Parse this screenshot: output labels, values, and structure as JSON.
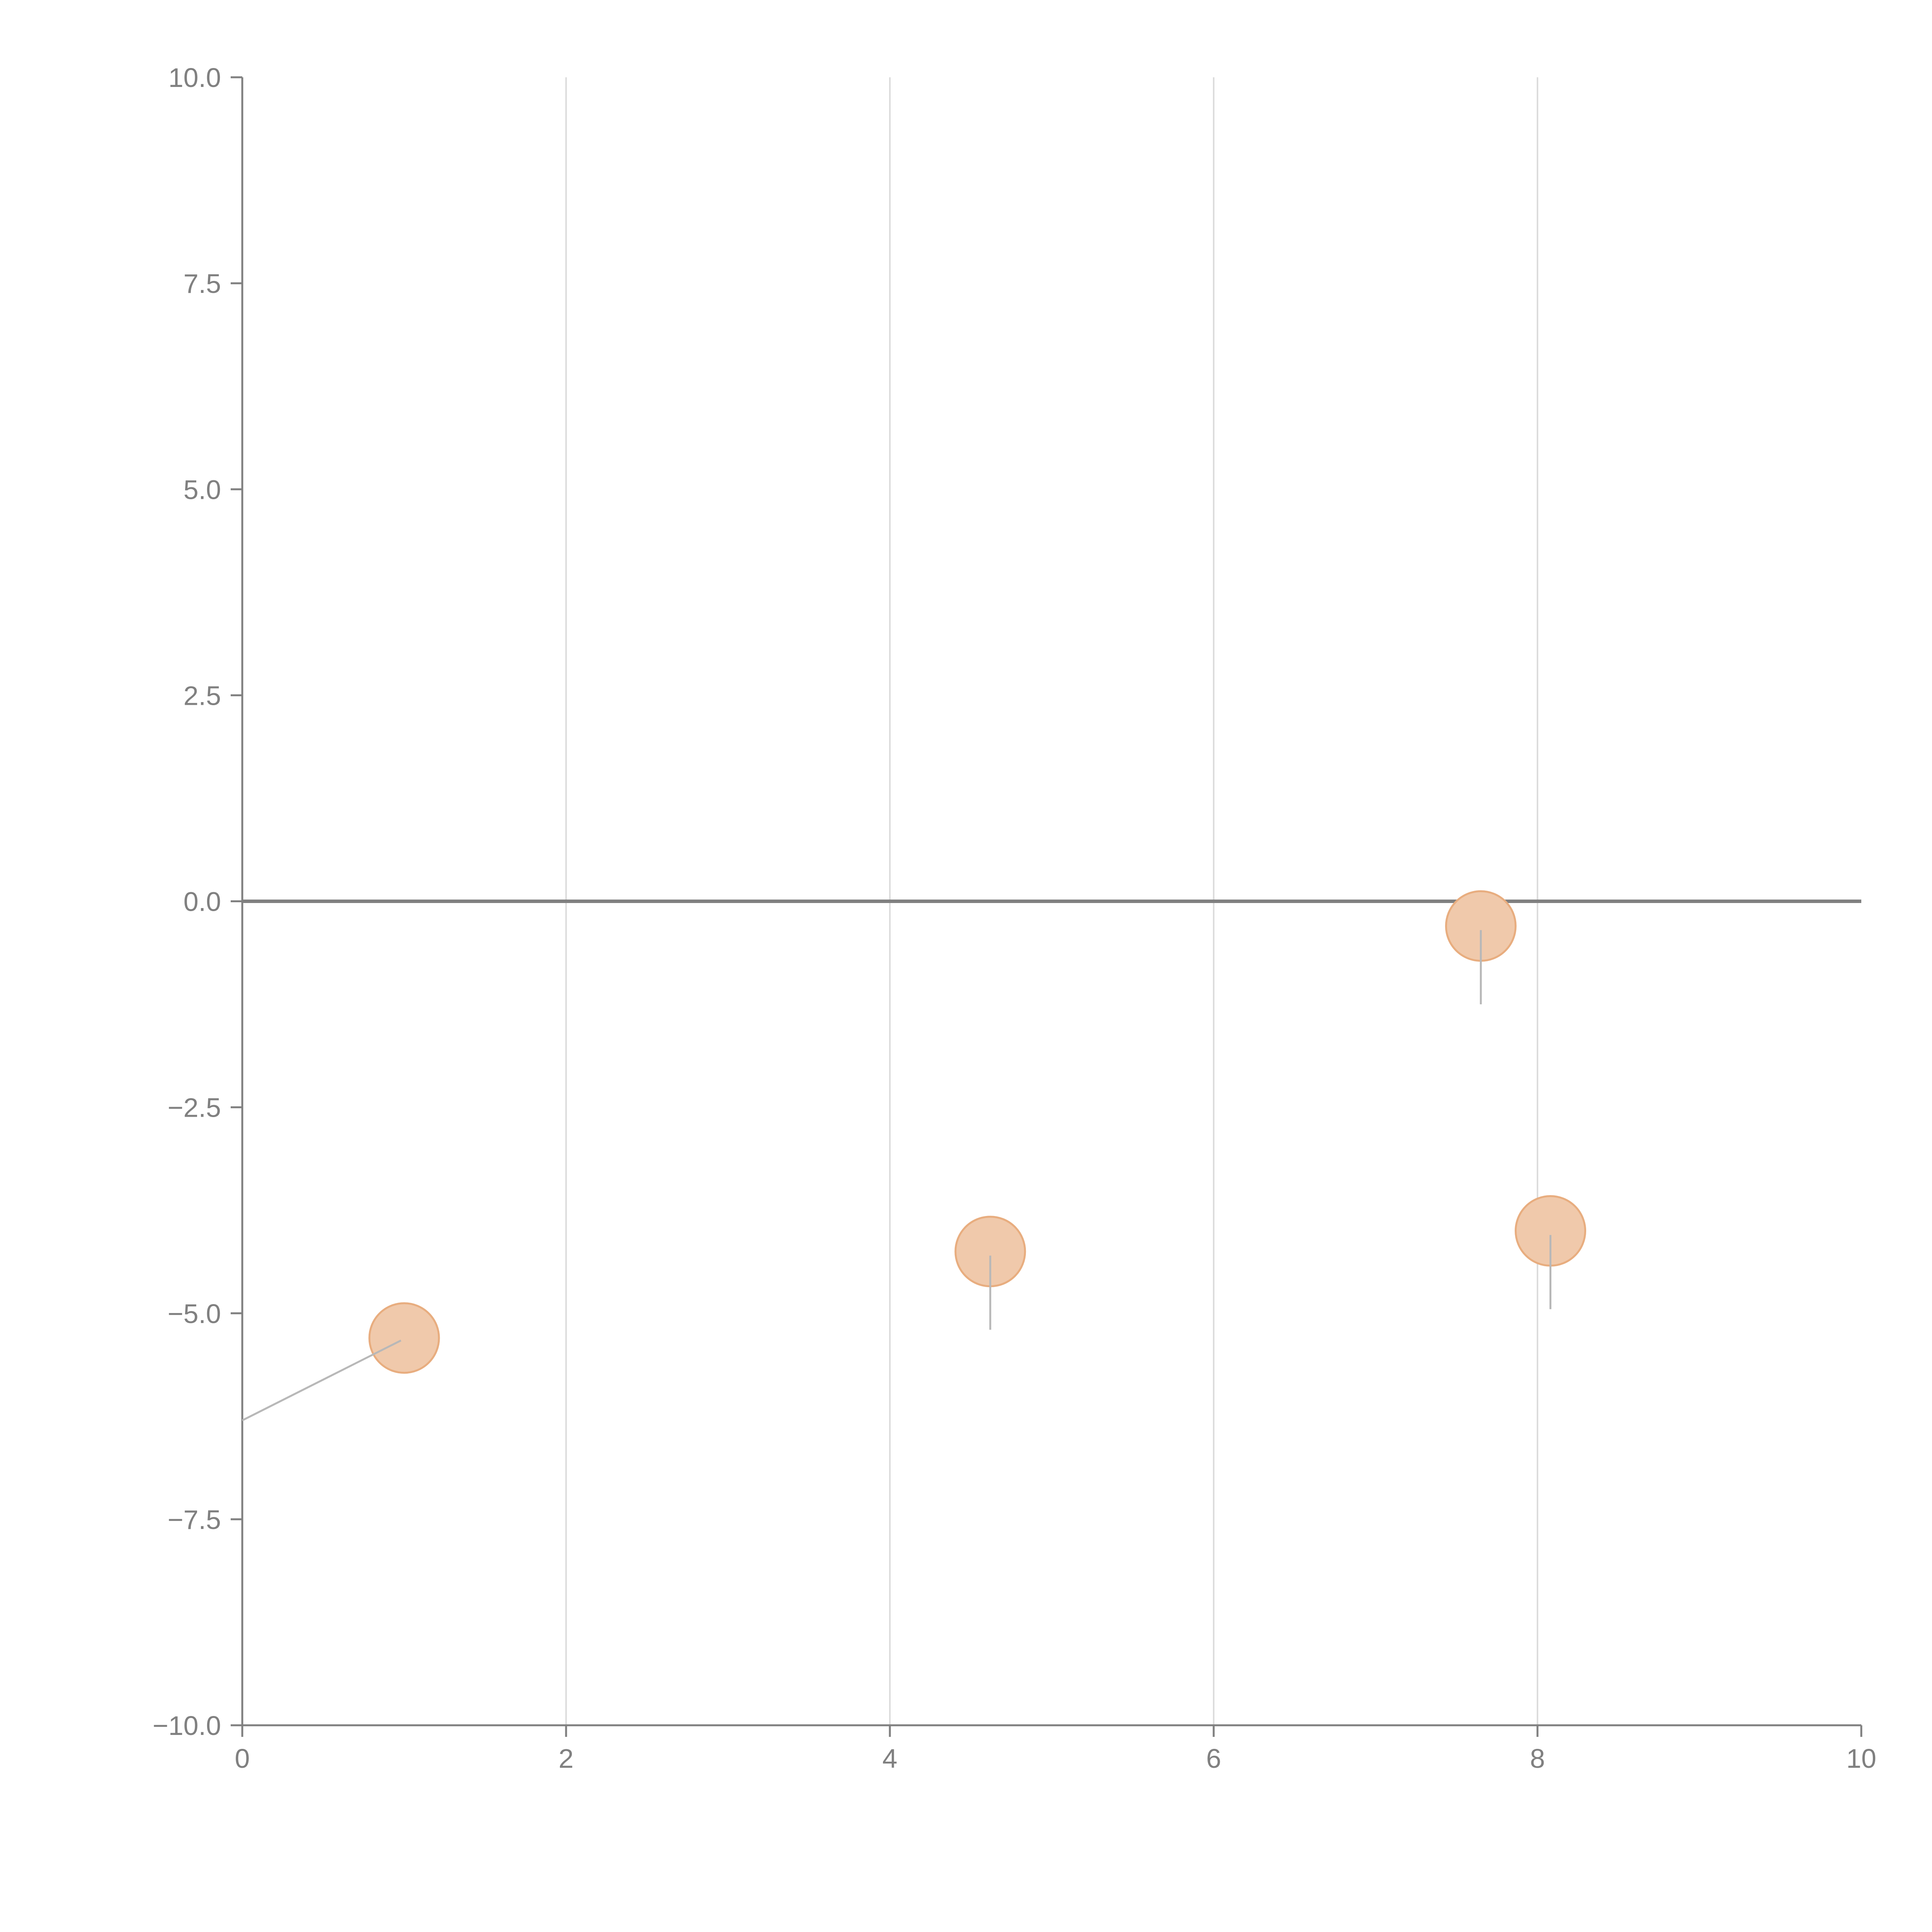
{
  "chart_data": {
    "type": "scatter",
    "title": "",
    "xlabel": "",
    "ylabel": "",
    "xlim": [
      0,
      10
    ],
    "ylim": [
      -10,
      10
    ],
    "x_ticks": [
      0,
      2,
      4,
      6,
      8,
      10
    ],
    "x_tick_labels": [
      "0",
      "2",
      "4",
      "6",
      "8",
      "10"
    ],
    "y_ticks": [
      10,
      7.5,
      5,
      2.5,
      0,
      -2.5,
      -5,
      -7.5,
      -10
    ],
    "y_tick_labels": [
      "10.0",
      "7.5",
      "5.0",
      "2.5",
      "0.0",
      "−2.5",
      "−5.0",
      "−7.5",
      "−10.0"
    ],
    "grid": "vertical",
    "zero_line": true,
    "legend": "none",
    "points": [
      {
        "x": 1.0,
        "y": -5.3
      },
      {
        "x": 4.62,
        "y": -4.25
      },
      {
        "x": 7.65,
        "y": -0.3
      },
      {
        "x": 8.08,
        "y": -4.0
      }
    ],
    "leader_lines": [
      {
        "from": [
          0.98,
          -5.33
        ],
        "to": [
          0.0,
          -6.3
        ]
      },
      {
        "from": [
          4.62,
          -4.3
        ],
        "to": [
          4.62,
          -5.2
        ]
      },
      {
        "from": [
          7.65,
          -0.35
        ],
        "to": [
          7.65,
          -1.25
        ]
      },
      {
        "from": [
          8.08,
          -4.05
        ],
        "to": [
          8.08,
          -4.95
        ]
      }
    ],
    "colors": {
      "marker_fill": "#f0c9ab",
      "marker_stroke": "#e8ad7f",
      "axis": "#808080",
      "grid": "#dcdcdc",
      "zero_line": "#808080",
      "leader_line": "#b8b8b8",
      "tick_label": "#808080"
    }
  }
}
